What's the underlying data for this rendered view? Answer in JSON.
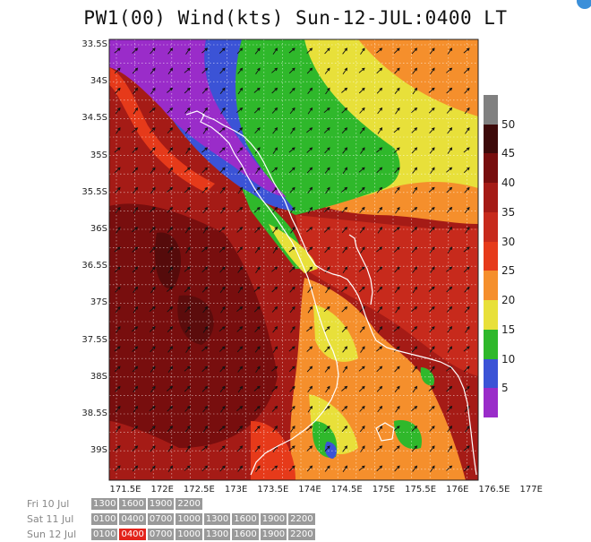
{
  "title": "PW1(00) Wind(kts) Sun-12-JUL:0400 LT",
  "lat_labels": [
    "33.5S",
    "34S",
    "34.5S",
    "35S",
    "35.5S",
    "36S",
    "36.5S",
    "37S",
    "37.5S",
    "38S",
    "38.5S",
    "39S"
  ],
  "lon_labels": [
    "171.5E",
    "172E",
    "172.5E",
    "173E",
    "173.5E",
    "174E",
    "174.5E",
    "175E",
    "175.5E",
    "176E",
    "176.5E",
    "177E"
  ],
  "colorbar": {
    "labels": [
      "50",
      "45",
      "40",
      "35",
      "30",
      "25",
      "20",
      "15",
      "10",
      "5"
    ],
    "colors": [
      "#808080",
      "#3d0a0a",
      "#780e0e",
      "#a51b16",
      "#c72a1c",
      "#e63a1a",
      "#f58f2c",
      "#e8e03a",
      "#2fb82b",
      "#3b53d6",
      "#9a2cc9"
    ]
  },
  "days": [
    {
      "label": "Fri 10 Jul",
      "times": [
        "1300",
        "1600",
        "1900",
        "2200"
      ],
      "active": ""
    },
    {
      "label": "Sat 11 Jul",
      "times": [
        "0100",
        "0400",
        "0700",
        "1000",
        "1300",
        "1600",
        "1900",
        "2200"
      ],
      "active": ""
    },
    {
      "label": "Sun 12 Jul",
      "times": [
        "0100",
        "0400",
        "0700",
        "1000",
        "1300",
        "1600",
        "1900",
        "2200"
      ],
      "active": "0400"
    }
  ]
}
